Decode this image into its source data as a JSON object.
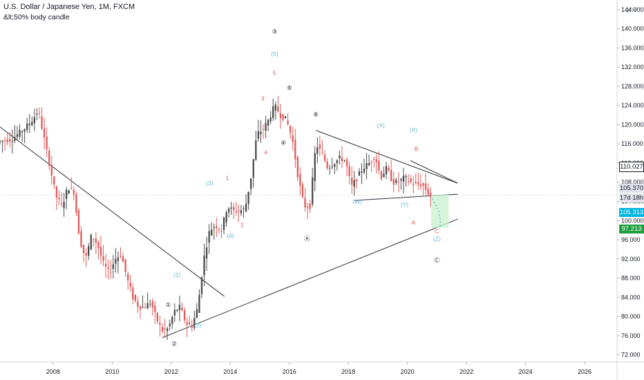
{
  "header": {
    "title": "U.S. Dollar / Japanese Yen, 1M, FXCM",
    "indicator": "&lt;50% body candle"
  },
  "price_axis": {
    "currency": "JPY",
    "tags": {
      "upper_line": "110.027",
      "last_price": "105.370",
      "countdown": "17d 18h",
      "current": "105.313",
      "target": "97.213"
    }
  },
  "colors": {
    "bull": "#4a4a4a",
    "bear": "#e05a5a",
    "wave_minor": "#5bb8d1",
    "wave_red": "#e05a5a",
    "wave_major": "#131722",
    "projection_fill": "#c8f0cc",
    "current_tag": "#00b4e0",
    "target_tag": "#1e9e3e"
  },
  "chart_data": {
    "type": "candlestick",
    "title": "U.S. Dollar / Japanese Yen, 1M, FXCM",
    "x_ticks": [
      "2008",
      "2010",
      "2012",
      "2014",
      "2016",
      "2018",
      "2020",
      "2022",
      "2024",
      "2026"
    ],
    "y_ticks": [
      "72.000",
      "76.000",
      "80.000",
      "84.000",
      "88.000",
      "92.000",
      "96.000",
      "100.000",
      "104.000",
      "108.000",
      "112.000",
      "116.000",
      "120.000",
      "124.000",
      "128.000",
      "132.000",
      "136.000",
      "140.000",
      "144.000"
    ],
    "ylim": [
      70.5,
      146
    ],
    "xlim": [
      2006.2,
      2027.1
    ],
    "path": [
      [
        2006.2,
        116.5
      ],
      [
        2006.6,
        117
      ],
      [
        2007.0,
        119
      ],
      [
        2007.3,
        121
      ],
      [
        2007.5,
        123
      ],
      [
        2007.7,
        117
      ],
      [
        2007.9,
        111
      ],
      [
        2008.1,
        105
      ],
      [
        2008.3,
        103
      ],
      [
        2008.5,
        107
      ],
      [
        2008.7,
        106
      ],
      [
        2008.9,
        96
      ],
      [
        2009.1,
        92
      ],
      [
        2009.3,
        97
      ],
      [
        2009.5,
        95
      ],
      [
        2009.7,
        91
      ],
      [
        2009.9,
        89
      ],
      [
        2010.1,
        92
      ],
      [
        2010.3,
        93
      ],
      [
        2010.5,
        88
      ],
      [
        2010.7,
        84
      ],
      [
        2010.9,
        82
      ],
      [
        2011.1,
        82
      ],
      [
        2011.3,
        83
      ],
      [
        2011.5,
        79.5
      ],
      [
        2011.7,
        77
      ],
      [
        2011.9,
        77.5
      ],
      [
        2012.1,
        81
      ],
      [
        2012.3,
        82
      ],
      [
        2012.5,
        78.5
      ],
      [
        2012.7,
        78
      ],
      [
        2012.9,
        82
      ],
      [
        2013.1,
        92
      ],
      [
        2013.3,
        98
      ],
      [
        2013.5,
        99
      ],
      [
        2013.7,
        98
      ],
      [
        2013.9,
        103
      ],
      [
        2014.1,
        102
      ],
      [
        2014.3,
        102
      ],
      [
        2014.5,
        102.5
      ],
      [
        2014.7,
        109
      ],
      [
        2014.9,
        118
      ],
      [
        2015.1,
        119
      ],
      [
        2015.3,
        121
      ],
      [
        2015.5,
        124
      ],
      [
        2015.7,
        122
      ],
      [
        2015.9,
        121
      ],
      [
        2016.1,
        117
      ],
      [
        2016.3,
        109
      ],
      [
        2016.5,
        103
      ],
      [
        2016.7,
        103
      ],
      [
        2016.9,
        116
      ],
      [
        2017.1,
        114
      ],
      [
        2017.3,
        111
      ],
      [
        2017.5,
        112
      ],
      [
        2017.7,
        113
      ],
      [
        2017.9,
        112.5
      ],
      [
        2018.1,
        107
      ],
      [
        2018.3,
        109
      ],
      [
        2018.5,
        111
      ],
      [
        2018.7,
        112
      ],
      [
        2018.9,
        113.5
      ],
      [
        2019.1,
        109
      ],
      [
        2019.3,
        111
      ],
      [
        2019.5,
        108
      ],
      [
        2019.7,
        108
      ],
      [
        2019.9,
        109
      ],
      [
        2020.1,
        108
      ],
      [
        2020.3,
        107.5
      ],
      [
        2020.5,
        107.5
      ],
      [
        2020.7,
        105.8
      ],
      [
        2020.8,
        105.3
      ]
    ],
    "lines": [
      {
        "name": "upper_down_trendline",
        "points": [
          [
            2006.2,
            119.5
          ],
          [
            2013.8,
            84.2
          ]
        ]
      },
      {
        "name": "lower_up_trendline",
        "points": [
          [
            2011.7,
            75.6
          ],
          [
            2021.7,
            100.3
          ]
        ]
      },
      {
        "name": "triangle_upper",
        "points": [
          [
            2016.9,
            118.8
          ],
          [
            2021.7,
            107.8
          ]
        ]
      },
      {
        "name": "triangle_lower",
        "points": [
          [
            2018.2,
            104.2
          ],
          [
            2021.7,
            105.5
          ]
        ]
      },
      {
        "name": "triangle_upper_b",
        "points": [
          [
            2020.1,
            112.5
          ],
          [
            2021.7,
            107.8
          ]
        ]
      }
    ],
    "projection": {
      "x": [
        2020.8,
        2021.4
      ],
      "y": [
        98.5,
        105.4
      ]
    },
    "wave_labels": [
      {
        "text": "①",
        "x": 2011.9,
        "y": 82.0,
        "group": "major"
      },
      {
        "text": "②",
        "x": 2012.1,
        "y": 73.9,
        "group": "major"
      },
      {
        "text": "③",
        "x": 2015.5,
        "y": 139.0,
        "group": "major"
      },
      {
        "text": "④",
        "x": 2015.8,
        "y": 115.8,
        "group": "major"
      },
      {
        "text": "⑤",
        "x": 2016.0,
        "y": 127.3,
        "group": "major"
      },
      {
        "text": "⑥",
        "x": 2016.9,
        "y": 121.7,
        "group": "major"
      },
      {
        "text": "Ⓐ",
        "x": 2016.6,
        "y": 95.8,
        "group": "major"
      },
      {
        "text": "Ⓒ",
        "x": 2021.0,
        "y": 91.3,
        "group": "major"
      },
      {
        "text": "(1)",
        "x": 2012.2,
        "y": 88.3,
        "group": "minor"
      },
      {
        "text": "(2)",
        "x": 2012.9,
        "y": 77.8,
        "group": "minor"
      },
      {
        "text": "(3)",
        "x": 2013.3,
        "y": 107.4,
        "group": "minor"
      },
      {
        "text": "(4)",
        "x": 2014.0,
        "y": 96.4,
        "group": "minor"
      },
      {
        "text": "(5)",
        "x": 2015.5,
        "y": 134.3,
        "group": "minor"
      },
      {
        "text": "(W)",
        "x": 2018.3,
        "y": 103.5,
        "group": "minor"
      },
      {
        "text": "(X)",
        "x": 2019.1,
        "y": 119.4,
        "group": "minor"
      },
      {
        "text": "(Y)",
        "x": 2019.9,
        "y": 102.9,
        "group": "minor"
      },
      {
        "text": "(X)",
        "x": 2020.2,
        "y": 118.5,
        "group": "minor"
      },
      {
        "text": "(Z)",
        "x": 2021.0,
        "y": 95.8,
        "group": "minor"
      },
      {
        "text": "1",
        "x": 2013.9,
        "y": 108.5,
        "group": "red"
      },
      {
        "text": "2",
        "x": 2014.4,
        "y": 98.7,
        "group": "red"
      },
      {
        "text": "3",
        "x": 2015.1,
        "y": 125.0,
        "group": "red"
      },
      {
        "text": "4",
        "x": 2015.2,
        "y": 113.8,
        "group": "red"
      },
      {
        "text": "5",
        "x": 2015.5,
        "y": 130.4,
        "group": "red"
      },
      {
        "text": "A",
        "x": 2020.2,
        "y": 99.2,
        "group": "red"
      },
      {
        "text": "B",
        "x": 2020.3,
        "y": 114.5,
        "group": "red"
      },
      {
        "text": "C",
        "x": 2021.0,
        "y": 97.4,
        "group": "red"
      }
    ]
  }
}
